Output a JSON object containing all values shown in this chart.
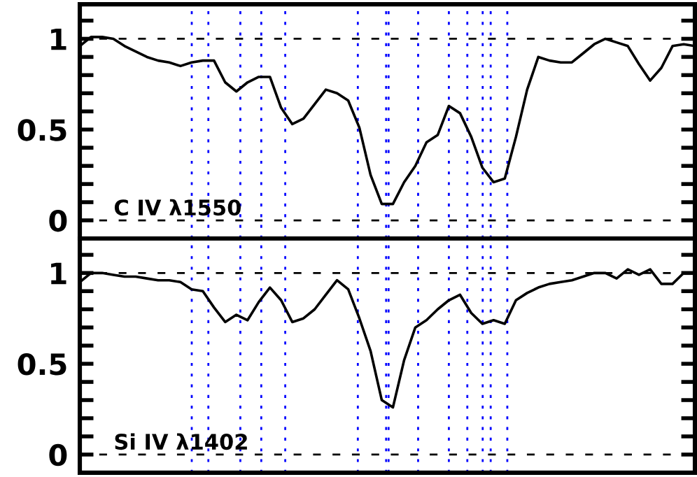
{
  "chart_data": [
    {
      "type": "line",
      "annotations": [
        "C IV λ1550"
      ],
      "tick_labels": "y",
      "grid": "x",
      "legend": false,
      "categories": [
        null,
        null,
        null,
        null,
        null,
        null,
        null,
        null,
        null,
        null,
        null,
        null,
        null,
        null,
        null,
        null,
        null,
        null,
        null,
        null,
        null,
        null,
        null,
        null,
        null,
        null,
        null,
        null,
        null,
        null,
        null,
        null,
        null,
        null,
        null,
        null,
        null,
        null,
        null,
        null,
        null,
        null,
        null,
        null,
        null,
        null,
        null,
        null,
        null,
        null,
        null,
        null,
        null,
        null,
        null,
        null
      ],
      "ylim": [
        -0.1,
        1.19
      ],
      "yticks": [
        0,
        {
          "value": 0.1,
          "label": null
        },
        {
          "value": 0.2,
          "label": null
        },
        {
          "value": 0.3,
          "label": null
        },
        {
          "value": 0.4,
          "label": null
        },
        0.5,
        {
          "value": 0.6,
          "label": null
        },
        {
          "value": 0.7,
          "label": null
        },
        {
          "value": 0.8,
          "label": null
        },
        {
          "value": 0.9,
          "label": null
        },
        1,
        {
          "value": 1.1,
          "label": null
        }
      ],
      "ref_lines": [
        {
          "axis": "y",
          "value": 1,
          "color": "#000000",
          "line_style": "dashed"
        },
        {
          "axis": "y",
          "value": 0,
          "color": "#000000",
          "line_style": "dashed"
        }
      ],
      "series": [
        {
          "color": "#000000",
          "values": [
            0.96,
            1.01,
            1.01,
            1.0,
            0.96,
            0.93,
            0.9,
            0.88,
            0.87,
            0.85,
            0.87,
            0.88,
            0.88,
            0.76,
            0.71,
            0.76,
            0.79,
            0.79,
            0.62,
            0.53,
            0.56,
            0.64,
            0.72,
            0.7,
            0.66,
            0.51,
            0.25,
            0.09,
            0.09,
            0.21,
            0.3,
            0.43,
            0.47,
            0.63,
            0.59,
            0.46,
            0.29,
            0.21,
            0.23,
            0.46,
            0.72,
            0.9,
            0.88,
            0.87,
            0.87,
            0.92,
            0.97,
            1.0,
            0.98,
            0.96,
            0.86,
            0.77,
            0.84,
            0.96,
            0.97,
            0.96
          ]
        }
      ]
    },
    {
      "type": "line",
      "annotations": [
        "Si IV λ1402"
      ],
      "tick_labels": "y",
      "grid": "x",
      "legend": false,
      "categories": [
        null,
        null,
        null,
        null,
        null,
        null,
        null,
        null,
        null,
        null,
        null,
        null,
        null,
        null,
        null,
        null,
        null,
        null,
        null,
        null,
        null,
        null,
        null,
        null,
        null,
        null,
        null,
        null,
        null,
        null,
        null,
        null,
        null,
        null,
        null,
        null,
        null,
        null,
        null,
        null,
        null,
        null,
        null,
        null,
        null,
        null,
        null,
        null,
        null,
        null,
        null,
        null,
        null,
        null,
        null,
        null
      ],
      "ylim": [
        -0.1,
        1.19
      ],
      "yticks": [
        0,
        {
          "value": 0.1,
          "label": null
        },
        {
          "value": 0.2,
          "label": null
        },
        {
          "value": 0.3,
          "label": null
        },
        {
          "value": 0.4,
          "label": null
        },
        0.5,
        {
          "value": 0.6,
          "label": null
        },
        {
          "value": 0.7,
          "label": null
        },
        {
          "value": 0.8,
          "label": null
        },
        {
          "value": 0.9,
          "label": null
        },
        1,
        {
          "value": 1.1,
          "label": null
        }
      ],
      "ref_lines": [
        {
          "axis": "y",
          "value": 1,
          "color": "#000000",
          "line_style": "dashed"
        },
        {
          "axis": "y",
          "value": 0,
          "color": "#000000",
          "line_style": "dashed"
        }
      ],
      "series": [
        {
          "color": "#000000",
          "values": [
            0.95,
            1.0,
            1.0,
            0.99,
            0.98,
            0.98,
            0.97,
            0.96,
            0.96,
            0.95,
            0.91,
            0.9,
            0.81,
            0.73,
            0.77,
            0.74,
            0.84,
            0.92,
            0.85,
            0.73,
            0.75,
            0.8,
            0.88,
            0.96,
            0.91,
            0.75,
            0.57,
            0.3,
            0.26,
            0.52,
            0.7,
            0.74,
            0.8,
            0.85,
            0.88,
            0.78,
            0.72,
            0.74,
            0.72,
            0.85,
            0.89,
            0.92,
            0.94,
            0.95,
            0.96,
            0.98,
            1.0,
            1.0,
            0.97,
            1.02,
            0.99,
            1.02,
            0.94,
            0.94,
            1.0,
            1.0
          ]
        }
      ]
    }
  ]
}
